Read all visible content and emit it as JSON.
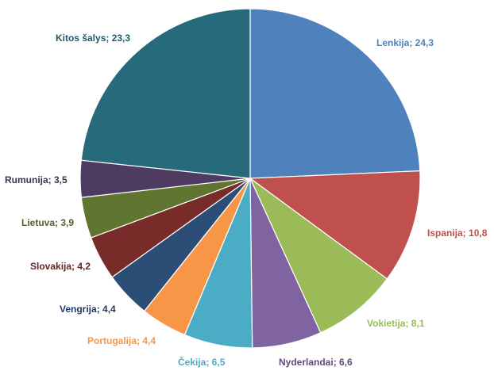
{
  "chart_data": {
    "type": "pie",
    "categories": [
      "Lenkija",
      "Ispanija",
      "Vokietija",
      "Nyderlandai",
      "Čekija",
      "Portugalija",
      "Vengrija",
      "Slovakija",
      "Lietuva",
      "Rumunija",
      "Kitos šalys"
    ],
    "values": [
      24.3,
      10.8,
      8.1,
      6.6,
      6.5,
      4.4,
      4.4,
      4.2,
      3.9,
      3.5,
      23.3
    ],
    "labels": [
      "Lenkija; 24,3",
      "Ispanija; 10,8",
      "Vokietija; 8,1",
      "Nyderlandai; 6,6",
      "Čekija; 6,5",
      "Portugalija; 4,4",
      "Vengrija; 4,4",
      "Slovakija; 4,2",
      "Lietuva; 3,9",
      "Rumunija; 3,5",
      "Kitos šalys; 23,3"
    ],
    "colors": [
      "#4f81bd",
      "#c0504d",
      "#9bbb59",
      "#8064a2",
      "#4bacc6",
      "#f79646",
      "#2c4d75",
      "#772c2a",
      "#5f7530",
      "#4d3b62",
      "#276a7c"
    ],
    "label_colors": [
      "#4f81bd",
      "#c0504d",
      "#9bbb59",
      "#604a7b",
      "#4bacc6",
      "#f79646",
      "#1f3864",
      "#632523",
      "#4f6228",
      "#3f3151",
      "#215968"
    ],
    "start_angle": "12 o'clock",
    "direction": "clockwise",
    "legend": "none",
    "title": ""
  }
}
